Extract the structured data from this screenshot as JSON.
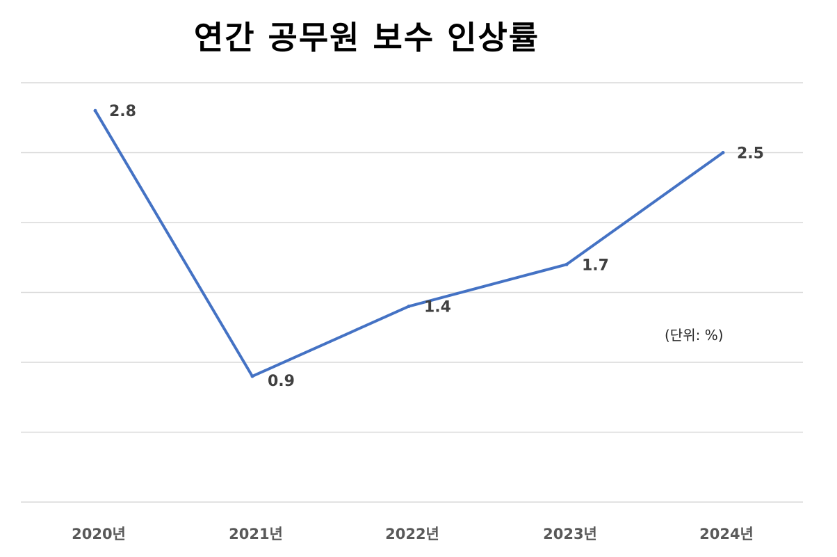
{
  "chart_data": {
    "type": "line",
    "title": "연간 공무원 보수 인상률",
    "unit_note": "(단위: %)",
    "xlabel": "",
    "ylabel": "",
    "categories": [
      "2020년",
      "2021년",
      "2022년",
      "2023년",
      "2024년"
    ],
    "series": [
      {
        "values": [
          2.8,
          0.9,
          1.4,
          1.7,
          2.5
        ],
        "color": "#4472C4"
      }
    ],
    "ylim": [
      0,
      3.0
    ],
    "y_gridline_step": 0.5,
    "grid": true,
    "y_tick_labels_shown": false,
    "data_labels": true
  }
}
